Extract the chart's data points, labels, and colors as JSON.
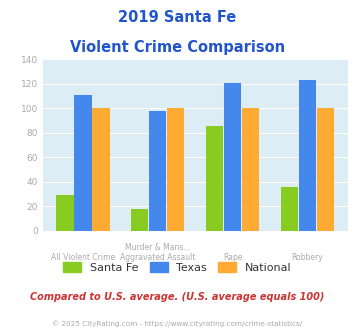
{
  "title_line1": "2019 Santa Fe",
  "title_line2": "Violent Crime Comparison",
  "categories": [
    "All Violent Crime",
    "Murder & Mans...",
    "Rape",
    "Robbery"
  ],
  "categories_sub": [
    "",
    "Aggravated Assault",
    "",
    ""
  ],
  "santa_fe": [
    29,
    18,
    86,
    36
  ],
  "texas": [
    111,
    98,
    121,
    123
  ],
  "national": [
    100,
    100,
    100,
    100
  ],
  "color_santa_fe": "#88cc22",
  "color_texas": "#4488ee",
  "color_national": "#ffaa33",
  "ylim": [
    0,
    140
  ],
  "yticks": [
    0,
    20,
    40,
    60,
    80,
    100,
    120,
    140
  ],
  "background_color": "#ddedf5",
  "footnote": "Compared to U.S. average. (U.S. average equals 100)",
  "copyright": "© 2025 CityRating.com - https://www.cityrating.com/crime-statistics/",
  "title_color": "#2255cc",
  "footnote_color": "#cc3333",
  "copyright_color": "#aaaaaa",
  "tick_label_color": "#aaaaaa",
  "legend_label_color": "#333333"
}
